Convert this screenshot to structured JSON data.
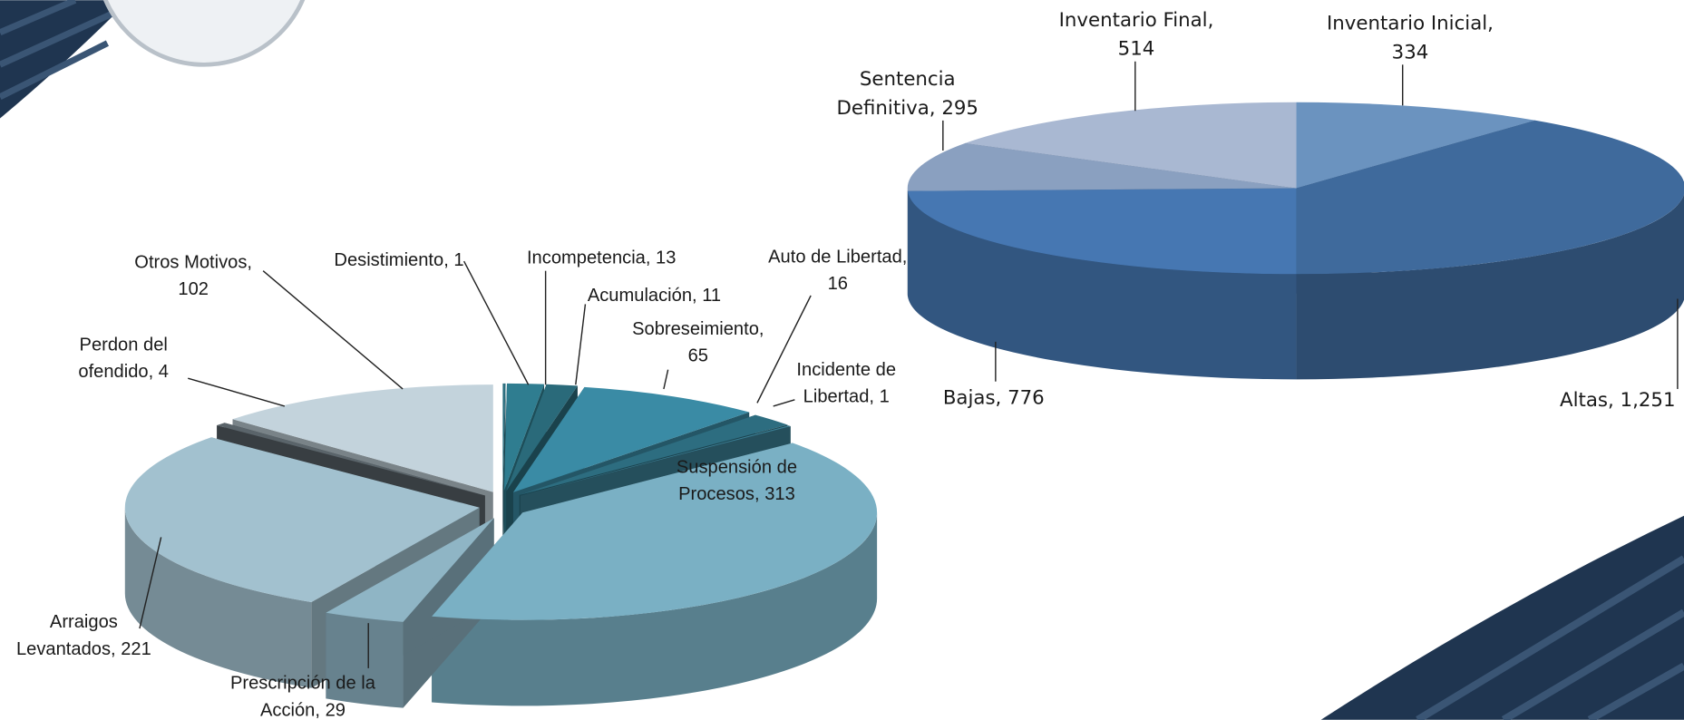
{
  "chart_data": [
    {
      "type": "pie3d",
      "categories": [
        "Desistimiento,",
        "Incompetencia,",
        "Acumulación,",
        "Sobreseimiento,",
        "Auto de Libertad,",
        "Incidente de Libertad,",
        "Suspensión de Procesos,",
        "Prescripción de la Acción,",
        "Arraigos Levantados,",
        "Perdon del ofendido,",
        "Otros Motivos,"
      ],
      "values": [
        1,
        13,
        11,
        65,
        16,
        1,
        313,
        29,
        221,
        4,
        102
      ],
      "colors": [
        "#2e6f80",
        "#2f7d90",
        "#2a6a7a",
        "#3a8ba5",
        "#2d6d80",
        "#3b7f95",
        "#7ab0c4",
        "#8fb5c5",
        "#a2c1cf",
        "#5a646a",
        "#c3d3dc"
      ]
    },
    {
      "type": "pie3d",
      "categories": [
        "Inventario Inicial,",
        "Altas,",
        "Bajas,",
        "Sentencia Definitiva,",
        "Inventario Final,"
      ],
      "values": [
        334,
        1251,
        776,
        295,
        514
      ],
      "value_labels": [
        "334",
        "1,251",
        "776",
        "295",
        "514"
      ],
      "colors": [
        "#6b93bf",
        "#3f6a9c",
        "#4677b2",
        "#8aa0c0",
        "#a9b8d2"
      ]
    }
  ]
}
